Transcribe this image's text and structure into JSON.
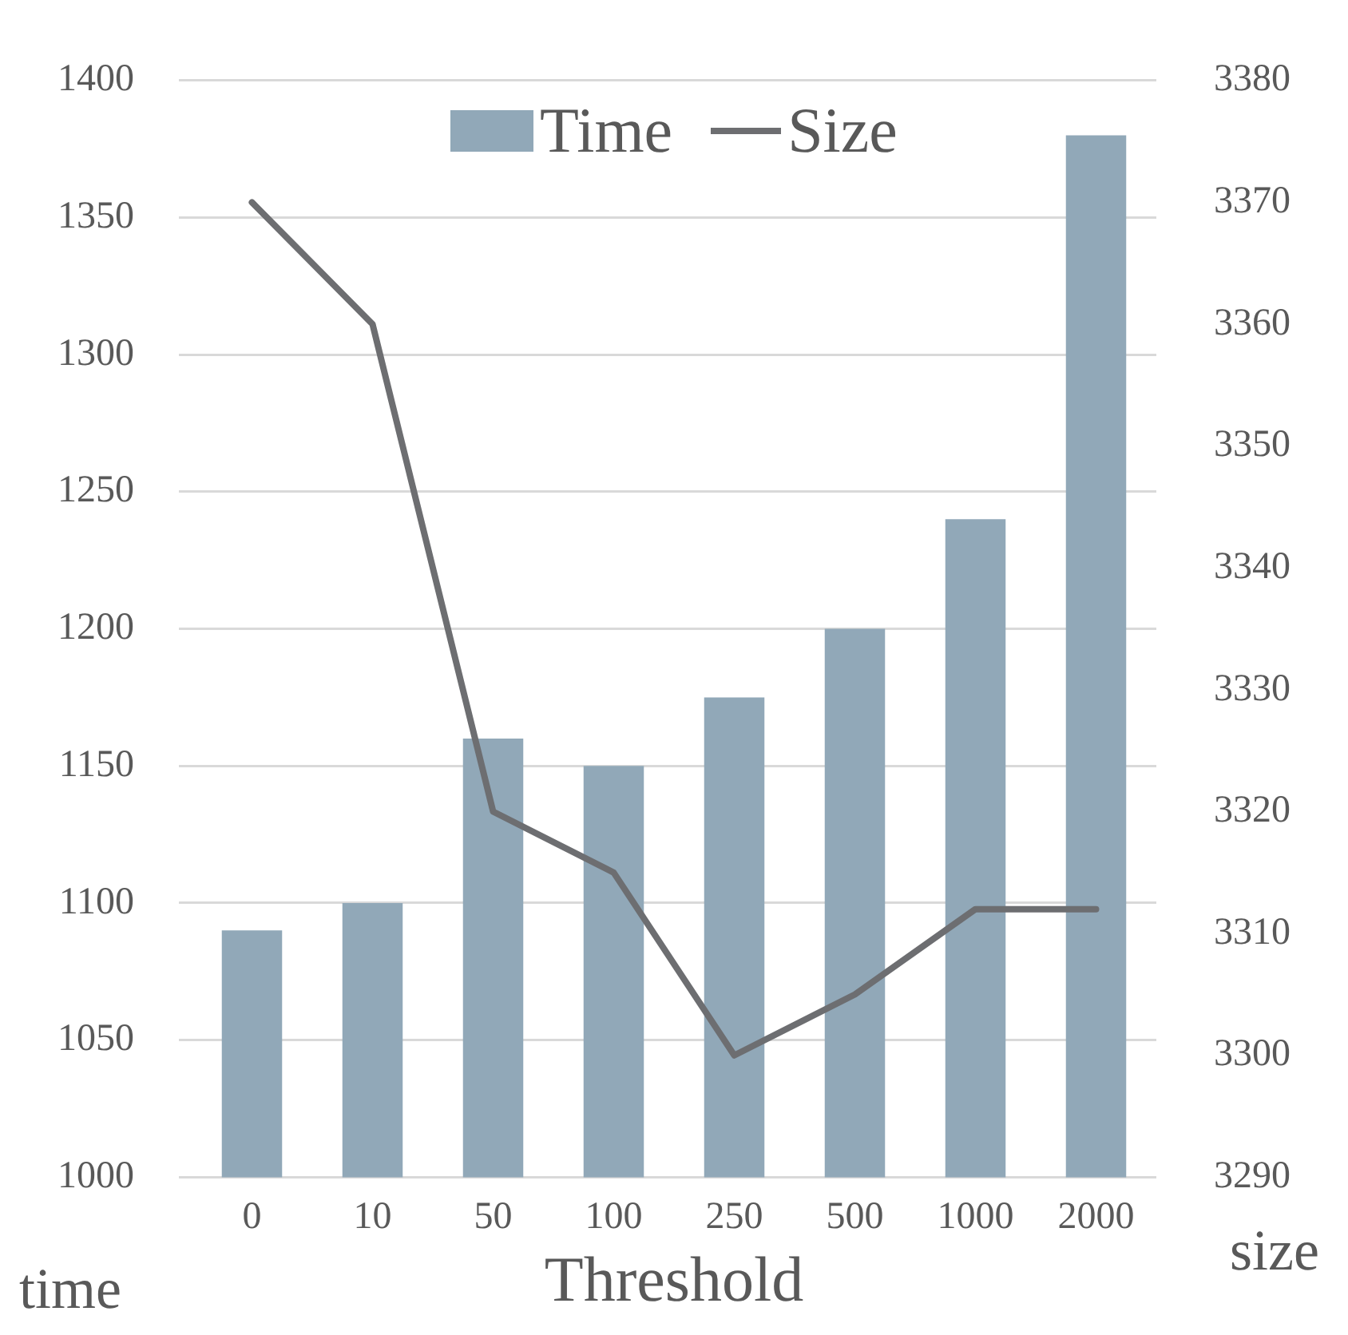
{
  "chart_data": {
    "type": "bar",
    "xlabel": "Threshold",
    "ylabel": "time",
    "y2label": "size",
    "categories": [
      "0",
      "10",
      "50",
      "100",
      "250",
      "500",
      "1000",
      "2000"
    ],
    "series": [
      {
        "name": "Time",
        "color": "#91a8b8",
        "values": [
          1090,
          1100,
          1160,
          1150,
          1175,
          1200,
          1240,
          1380
        ]
      },
      {
        "name": "Size",
        "type": "line",
        "axis": "y2",
        "color": "#6d6e71",
        "values": [
          3370,
          3360,
          3320,
          3315,
          3300,
          3305,
          3312,
          3312
        ]
      }
    ],
    "ylim": [
      1000,
      1400
    ],
    "yticks": [
      1000,
      1050,
      1100,
      1150,
      1200,
      1250,
      1300,
      1350,
      1400
    ],
    "y2lim": [
      3290,
      3380
    ],
    "y2ticks": [
      3290,
      3300,
      3310,
      3320,
      3330,
      3340,
      3350,
      3360,
      3370,
      3380
    ],
    "grid": "y",
    "legend": "top"
  }
}
